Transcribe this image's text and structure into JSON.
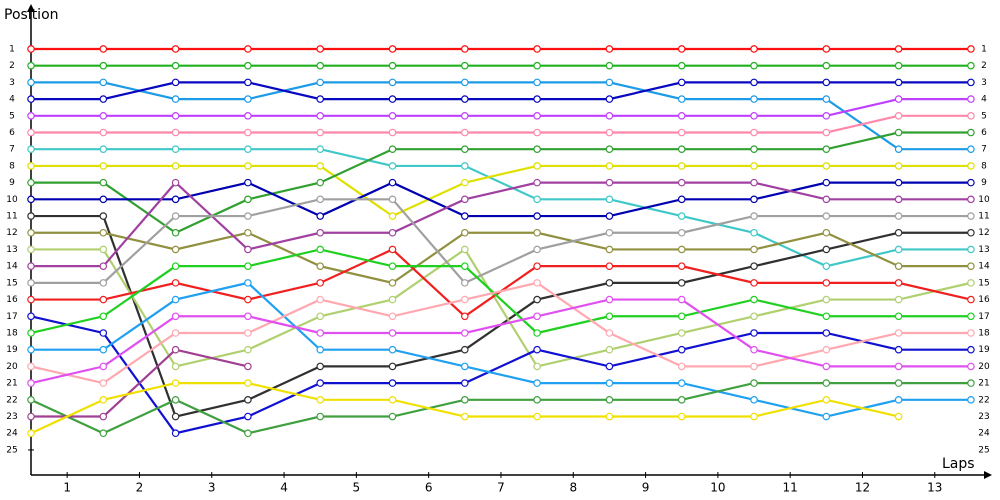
{
  "chart_data": {
    "type": "line",
    "y_label": "Position",
    "x_label": "Laps",
    "x": [
      0,
      1,
      2,
      3,
      4,
      5,
      6,
      7,
      8,
      9,
      10,
      11,
      12,
      13
    ],
    "xlim": [
      0,
      13.25
    ],
    "xticks": [
      {
        "value": 0.5,
        "label": "1"
      },
      {
        "value": 1.5,
        "label": "2"
      },
      {
        "value": 2.5,
        "label": "3"
      },
      {
        "value": 3.5,
        "label": "4"
      },
      {
        "value": 4.5,
        "label": "5"
      },
      {
        "value": 5.5,
        "label": "6"
      },
      {
        "value": 6.5,
        "label": "7"
      },
      {
        "value": 7.5,
        "label": "8"
      },
      {
        "value": 8.5,
        "label": "9"
      },
      {
        "value": 9.5,
        "label": "10"
      },
      {
        "value": 10.5,
        "label": "11"
      },
      {
        "value": 11.5,
        "label": "12"
      },
      {
        "value": 12.5,
        "label": "13"
      }
    ],
    "ylim": [
      26.5,
      -1.5
    ],
    "yticks": [
      1,
      2,
      3,
      4,
      5,
      6,
      7,
      8,
      9,
      10,
      11,
      12,
      13,
      14,
      15,
      16,
      17,
      18,
      19,
      20,
      21,
      22,
      23,
      24,
      25
    ],
    "series": [
      {
        "color": "#ff1010",
        "values": [
          1,
          1,
          1,
          1,
          1,
          1,
          1,
          1,
          1,
          1,
          1,
          1,
          1,
          1
        ]
      },
      {
        "color": "#20b020",
        "values": [
          2,
          2,
          2,
          2,
          2,
          2,
          2,
          2,
          2,
          2,
          2,
          2,
          2,
          2
        ]
      },
      {
        "color": "#1e9be6",
        "values": [
          3,
          3,
          4,
          4,
          3,
          3,
          3,
          3,
          3,
          4,
          4,
          4,
          7,
          7
        ]
      },
      {
        "color": "#0808c0",
        "values": [
          4,
          4,
          3,
          3,
          4,
          4,
          4,
          4,
          4,
          3,
          3,
          3,
          3,
          3
        ]
      },
      {
        "color": "#c040ff",
        "values": [
          5,
          5,
          5,
          5,
          5,
          5,
          5,
          5,
          5,
          5,
          5,
          5,
          4,
          4
        ]
      },
      {
        "color": "#ff88aa",
        "values": [
          6,
          6,
          6,
          6,
          6,
          6,
          6,
          6,
          6,
          6,
          6,
          6,
          5,
          5
        ]
      },
      {
        "color": "#40c8c8",
        "values": [
          7,
          7,
          7,
          7,
          7,
          8,
          8,
          10,
          10,
          11,
          12,
          14,
          13,
          13
        ]
      },
      {
        "color": "#e0e000",
        "values": [
          8,
          8,
          8,
          8,
          8,
          11,
          9,
          8,
          8,
          8,
          8,
          8,
          8,
          8
        ]
      },
      {
        "color": "#30a030",
        "values": [
          9,
          9,
          12,
          10,
          9,
          7,
          7,
          7,
          7,
          7,
          7,
          7,
          6,
          6
        ]
      },
      {
        "color": "#0000b0",
        "values": [
          10,
          10,
          10,
          9,
          11,
          9,
          11,
          11,
          11,
          10,
          10,
          9,
          9,
          9
        ]
      },
      {
        "color": "#303030",
        "values": [
          11,
          11,
          23,
          22,
          20,
          20,
          19,
          16,
          15,
          15,
          14,
          13,
          12,
          12
        ]
      },
      {
        "color": "#909040",
        "values": [
          12,
          12,
          13,
          12,
          14,
          15,
          12,
          12,
          13,
          13,
          13,
          12,
          14,
          14
        ]
      },
      {
        "color": "#b0d070",
        "values": [
          13,
          13,
          20,
          19,
          17,
          16,
          13,
          20,
          19,
          18,
          17,
          16,
          16,
          15
        ]
      },
      {
        "color": "#a040a0",
        "values": [
          14,
          14,
          9,
          13,
          12,
          12,
          10,
          9,
          9,
          9,
          9,
          10,
          10,
          10
        ]
      },
      {
        "color": "#a0a0a0",
        "values": [
          15,
          15,
          11,
          11,
          10,
          10,
          15,
          13,
          12,
          12,
          11,
          11,
          11,
          11
        ]
      },
      {
        "color": "#f02020",
        "values": [
          16,
          16,
          15,
          16,
          15,
          13,
          17,
          14,
          14,
          14,
          15,
          15,
          15,
          16
        ]
      },
      {
        "color": "#1010d0",
        "values": [
          17,
          18,
          24,
          23,
          21,
          21,
          21,
          19,
          20,
          19,
          18,
          18,
          19,
          19
        ]
      },
      {
        "color": "#20d020",
        "values": [
          18,
          17,
          14,
          14,
          13,
          14,
          14,
          18,
          17,
          17,
          16,
          17,
          17,
          17
        ]
      },
      {
        "color": "#20a0f0",
        "values": [
          19,
          19,
          16,
          15,
          19,
          19,
          20,
          21,
          21,
          21,
          22,
          23,
          22,
          22
        ]
      },
      {
        "color": "#ffa8b0",
        "values": [
          20,
          21,
          18,
          18,
          16,
          17,
          16,
          15,
          18,
          20,
          20,
          19,
          18,
          18
        ]
      },
      {
        "color": "#e050f0",
        "values": [
          21,
          20,
          17,
          17,
          18,
          18,
          18,
          17,
          16,
          16,
          19,
          20,
          20,
          20
        ]
      },
      {
        "color": "#40a040",
        "values": [
          22,
          24,
          22,
          24,
          23,
          23,
          22,
          22,
          22,
          22,
          21,
          21,
          21,
          21
        ]
      },
      {
        "color": "#a04090",
        "values": [
          23,
          23,
          19,
          20,
          null,
          null,
          null,
          null,
          null,
          null,
          null,
          null,
          null,
          null
        ]
      },
      {
        "color": "#f0e000",
        "values": [
          24,
          22,
          21,
          21,
          22,
          22,
          23,
          23,
          23,
          23,
          23,
          22,
          23,
          null
        ]
      }
    ]
  }
}
